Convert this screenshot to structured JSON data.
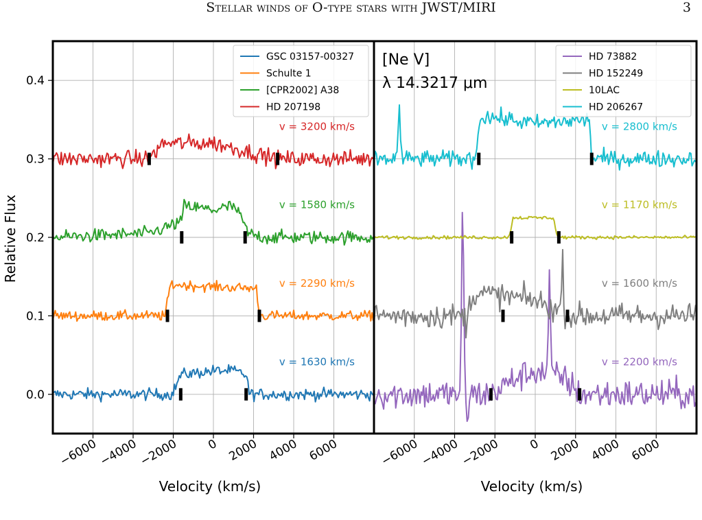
{
  "page": {
    "running_title": "Stellar winds of O-type stars with JWST/MIRI",
    "page_number": "3"
  },
  "chart_data": {
    "type": "line",
    "ylabel": "Relative Flux",
    "ylim": [
      -0.05,
      0.45
    ],
    "yticks": [
      0.0,
      0.1,
      0.2,
      0.3,
      0.4
    ],
    "ytick_labels": [
      "0.0",
      "0.1",
      "0.2",
      "0.3",
      "0.4"
    ],
    "grid": true,
    "panels": [
      {
        "xlabel": "Velocity (km/s)",
        "xlim": [
          -8000,
          8000
        ],
        "xticks": [
          -6000,
          -4000,
          -2000,
          0,
          2000,
          4000,
          6000
        ],
        "xtick_labels": [
          "−6000",
          "−4000",
          "−2000",
          "0",
          "2000",
          "4000",
          "6000"
        ],
        "legend_position": "top-right",
        "legend": [
          "GSC 03157-00327",
          "Schulte 1",
          "[CPR2002] A38",
          "HD 207198"
        ],
        "series": [
          {
            "name": "GSC 03157-00327",
            "color": "#1f77b4",
            "offset": 0.0,
            "vinf": 1630,
            "vinf_label": "v = 1630 km/s",
            "profile": [
              [
                -8000,
                0.0
              ],
              [
                -2050,
                0.0
              ],
              [
                -1630,
                0.025
              ],
              [
                0,
                0.03
              ],
              [
                1000,
                0.03
              ],
              [
                1630,
                0.025
              ],
              [
                1800,
                0.0
              ],
              [
                8000,
                0.0
              ]
            ],
            "noise": 0.007
          },
          {
            "name": "Schulte 1",
            "color": "#ff7f0e",
            "offset": 0.1,
            "vinf": 2290,
            "vinf_label": "v = 2290 km/s",
            "profile": [
              [
                -8000,
                0.0
              ],
              [
                -2400,
                0.0
              ],
              [
                -2150,
                0.04
              ],
              [
                0,
                0.037
              ],
              [
                2150,
                0.035
              ],
              [
                2290,
                0.0
              ],
              [
                8000,
                0.0
              ]
            ],
            "noise": 0.006
          },
          {
            "name": "[CPR2002] A38",
            "color": "#2ca02c",
            "offset": 0.2,
            "vinf": 1580,
            "vinf_label": "v = 1580 km/s",
            "profile": [
              [
                -8000,
                0.0
              ],
              [
                -3200,
                0.005
              ],
              [
                -1580,
                0.02
              ],
              [
                -1500,
                0.04
              ],
              [
                0,
                0.035
              ],
              [
                1000,
                0.04
              ],
              [
                1500,
                0.02
              ],
              [
                1700,
                0.005
              ],
              [
                2500,
                0.0
              ],
              [
                8000,
                0.0
              ]
            ],
            "noise": 0.008
          },
          {
            "name": "HD 207198",
            "color": "#d62728",
            "offset": 0.3,
            "vinf": 3200,
            "vinf_label": "v = 3200 km/s",
            "profile": [
              [
                -8000,
                0.0
              ],
              [
                -3200,
                0.0
              ],
              [
                -2500,
                0.02
              ],
              [
                0,
                0.02
              ],
              [
                3200,
                0.0
              ],
              [
                8000,
                0.0
              ]
            ],
            "noise": 0.01
          }
        ]
      },
      {
        "xlabel": "Velocity (km/s)",
        "xlim": [
          -8000,
          8000
        ],
        "xticks": [
          -6000,
          -4000,
          -2000,
          0,
          2000,
          4000,
          6000
        ],
        "xtick_labels": [
          "−6000",
          "−4000",
          "−2000",
          "0",
          "2000",
          "4000",
          "6000"
        ],
        "legend_position": "top-right",
        "legend": [
          "HD 73882",
          "HD 152249",
          "10LAC",
          "HD 206267"
        ],
        "annotation": {
          "ion": "[Ne V]",
          "wavelength": "λ 14.3217 μm"
        },
        "series": [
          {
            "name": "HD 73882",
            "color": "#9467bd",
            "offset": 0.0,
            "vinf": 2200,
            "vinf_label": "v = 2200 km/s",
            "profile": [
              [
                -8000,
                0.0
              ],
              [
                -2200,
                0.0
              ],
              [
                -1000,
                0.02
              ],
              [
                0,
                0.03
              ],
              [
                1500,
                0.02
              ],
              [
                2200,
                0.0
              ],
              [
                8000,
                0.0
              ]
            ],
            "noise": 0.018,
            "spikes": [
              [
                -3600,
                0.24
              ],
              [
                -3350,
                -0.03
              ],
              [
                700,
                0.12
              ]
            ]
          },
          {
            "name": "HD 152249",
            "color": "#7f7f7f",
            "offset": 0.1,
            "vinf": 1600,
            "vinf_label": "v = 1600 km/s",
            "profile": [
              [
                -8000,
                0.0
              ],
              [
                -3500,
                0.0
              ],
              [
                -3000,
                0.03
              ],
              [
                0,
                0.02
              ],
              [
                1600,
                0.0
              ],
              [
                8000,
                0.0
              ]
            ],
            "noise": 0.015,
            "spikes": [
              [
                1350,
                0.065
              ],
              [
                -3400,
                -0.02
              ]
            ]
          },
          {
            "name": "10LAC",
            "color": "#bcbd22",
            "offset": 0.2,
            "vinf": 1170,
            "vinf_label": "v = 1170 km/s",
            "profile": [
              [
                -8000,
                0.0
              ],
              [
                -1300,
                0.0
              ],
              [
                -1100,
                0.025
              ],
              [
                0,
                0.025
              ],
              [
                900,
                0.025
              ],
              [
                1100,
                0.0
              ],
              [
                8000,
                0.0
              ]
            ],
            "noise": 0.002
          },
          {
            "name": "HD 206267",
            "color": "#17becf",
            "offset": 0.3,
            "vinf": 2800,
            "vinf_label": "v = 2800 km/s",
            "profile": [
              [
                -8000,
                0.0
              ],
              [
                -3000,
                0.0
              ],
              [
                -2700,
                0.055
              ],
              [
                0,
                0.045
              ],
              [
                2700,
                0.05
              ],
              [
                2800,
                0.0
              ],
              [
                8000,
                0.0
              ]
            ],
            "noise": 0.01,
            "spikes": [
              [
                -6750,
                0.07
              ]
            ]
          }
        ]
      }
    ]
  }
}
